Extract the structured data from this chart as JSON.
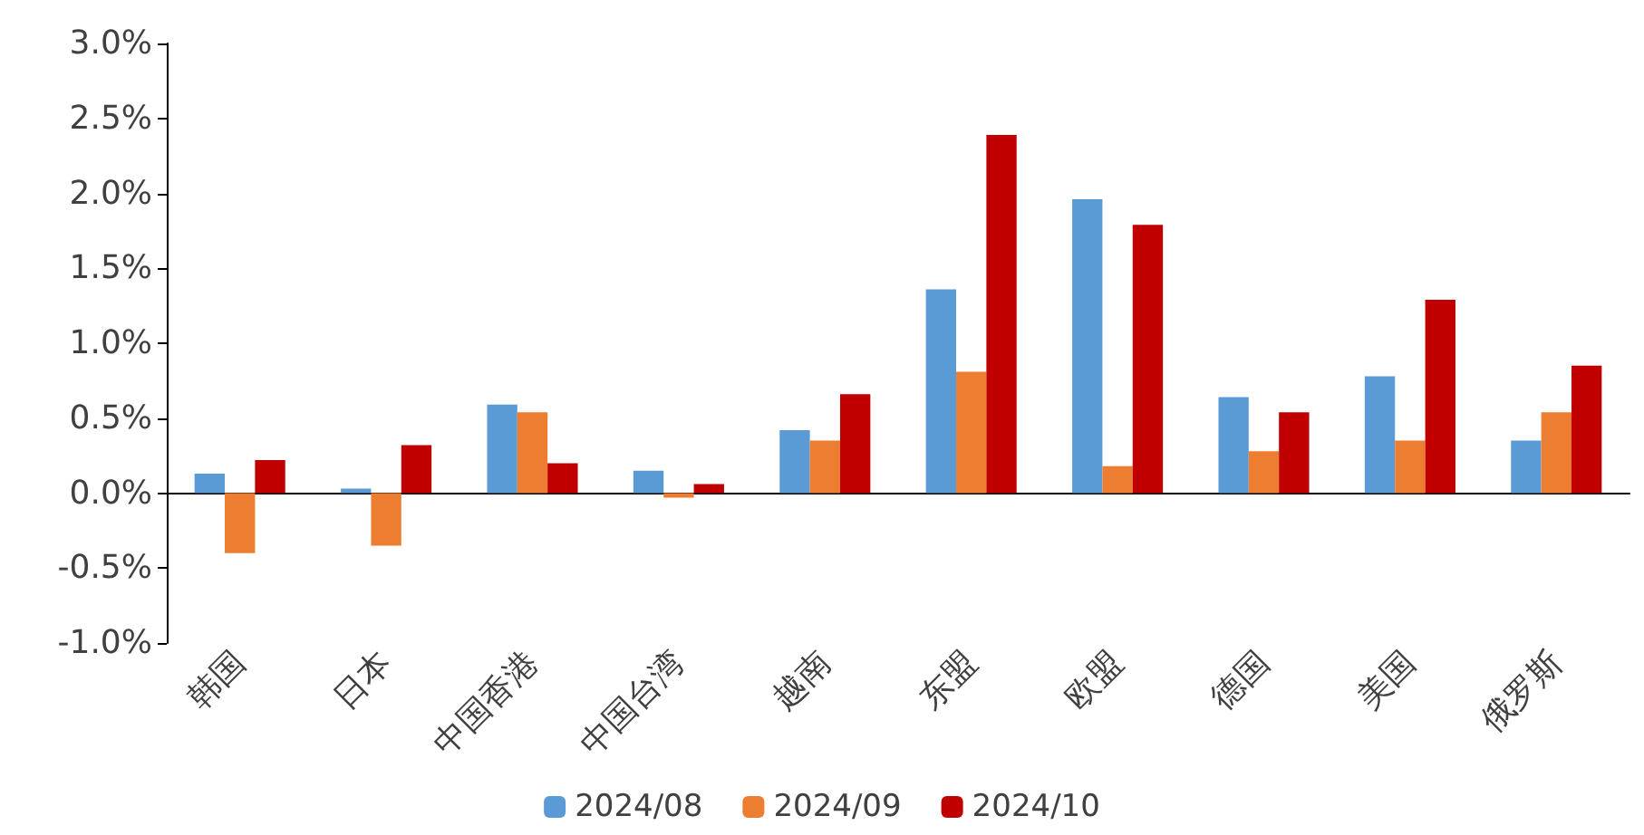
{
  "chart_data": {
    "type": "bar",
    "categories": [
      "韩国",
      "日本",
      "中国香港",
      "中国台湾",
      "越南",
      "东盟",
      "欧盟",
      "德国",
      "美国",
      "俄罗斯"
    ],
    "series": [
      {
        "name": "2024/08",
        "color": "#5b9bd5",
        "values": [
          0.13,
          0.03,
          0.59,
          0.15,
          0.42,
          1.36,
          1.96,
          0.64,
          0.78,
          0.35
        ]
      },
      {
        "name": "2024/09",
        "color": "#ed7d31",
        "values": [
          -0.4,
          -0.35,
          0.54,
          -0.03,
          0.35,
          0.81,
          0.18,
          0.28,
          0.35,
          0.54
        ]
      },
      {
        "name": "2024/10",
        "color": "#c00000",
        "values": [
          0.22,
          0.32,
          0.2,
          0.06,
          0.66,
          2.39,
          1.79,
          0.54,
          1.29,
          0.85
        ]
      }
    ],
    "ylim": [
      -1,
      3
    ],
    "yticks": [
      {
        "value": -1,
        "label": "-1.0%"
      },
      {
        "value": -0.5,
        "label": "-0.5%"
      },
      {
        "value": 0,
        "label": "0.0%"
      },
      {
        "value": 0.5,
        "label": "0.5%"
      },
      {
        "value": 1,
        "label": "1.0%"
      },
      {
        "value": 1.5,
        "label": "1.5%"
      },
      {
        "value": 2,
        "label": "2.0%"
      },
      {
        "value": 2.5,
        "label": "2.5%"
      },
      {
        "value": 3,
        "label": "3.0%"
      }
    ],
    "legend": "bottom"
  }
}
